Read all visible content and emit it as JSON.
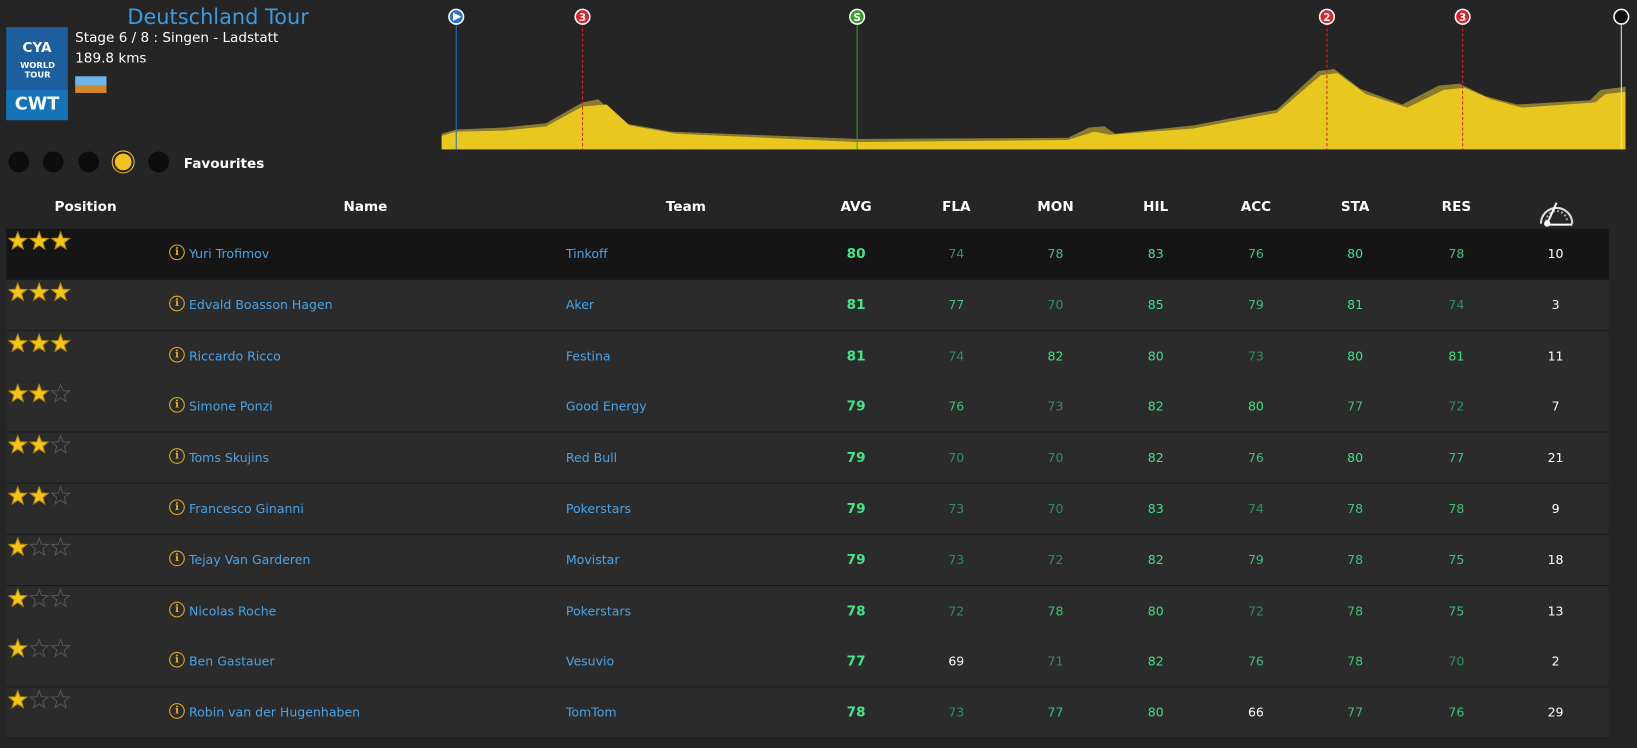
{
  "header": {
    "title": "Deutschland Tour",
    "stage": "Stage 6 / 8 : Singen - Ladstatt",
    "distance": "189.8 kms",
    "logo": {
      "top": "CYA",
      "middle": "WORLD TOUR",
      "bottom": "CWT"
    }
  },
  "profile": {
    "markers": [
      "3",
      "S",
      "2",
      "3"
    ]
  },
  "tabs": {
    "active_label": "Favourites"
  },
  "table": {
    "max_stars": 3,
    "columns": [
      "Position",
      "Name",
      "Team",
      "AVG",
      "FLA",
      "MON",
      "HIL",
      "ACC",
      "STA",
      "RES"
    ],
    "rows": [
      {
        "stars": 3,
        "name": "Yuri Trofimov",
        "team": "Tinkoff",
        "stats": [
          80,
          74,
          78,
          83,
          76,
          80,
          78
        ],
        "last": 10
      },
      {
        "stars": 3,
        "name": "Edvald Boasson Hagen",
        "team": "Aker",
        "stats": [
          81,
          77,
          70,
          85,
          79,
          81,
          74
        ],
        "last": 3
      },
      {
        "stars": 3,
        "name": "Riccardo Ricco",
        "team": "Festina",
        "stats": [
          81,
          74,
          82,
          80,
          73,
          80,
          81
        ],
        "last": 11
      },
      {
        "stars": 2,
        "name": "Simone Ponzi",
        "team": "Good Energy",
        "stats": [
          79,
          76,
          73,
          82,
          80,
          77,
          72
        ],
        "last": 7
      },
      {
        "stars": 2,
        "name": "Toms Skujins",
        "team": "Red Bull",
        "stats": [
          79,
          70,
          70,
          82,
          76,
          80,
          77
        ],
        "last": 21
      },
      {
        "stars": 2,
        "name": "Francesco Ginanni",
        "team": "Pokerstars",
        "stats": [
          79,
          73,
          70,
          83,
          74,
          78,
          78
        ],
        "last": 9
      },
      {
        "stars": 1,
        "name": "Tejay Van Garderen",
        "team": "Movistar",
        "stats": [
          79,
          73,
          72,
          82,
          79,
          78,
          75
        ],
        "last": 18
      },
      {
        "stars": 1,
        "name": "Nicolas Roche",
        "team": "Pokerstars",
        "stats": [
          78,
          72,
          78,
          80,
          72,
          78,
          75
        ],
        "last": 13
      },
      {
        "stars": 1,
        "name": "Ben Gastauer",
        "team": "Vesuvio",
        "stats": [
          77,
          69,
          71,
          82,
          76,
          78,
          70
        ],
        "last": 2
      },
      {
        "stars": 1,
        "name": "Robin van der Hugenhaben",
        "team": "TomTom",
        "stats": [
          78,
          73,
          77,
          80,
          66,
          77,
          76
        ],
        "last": 29
      }
    ]
  }
}
